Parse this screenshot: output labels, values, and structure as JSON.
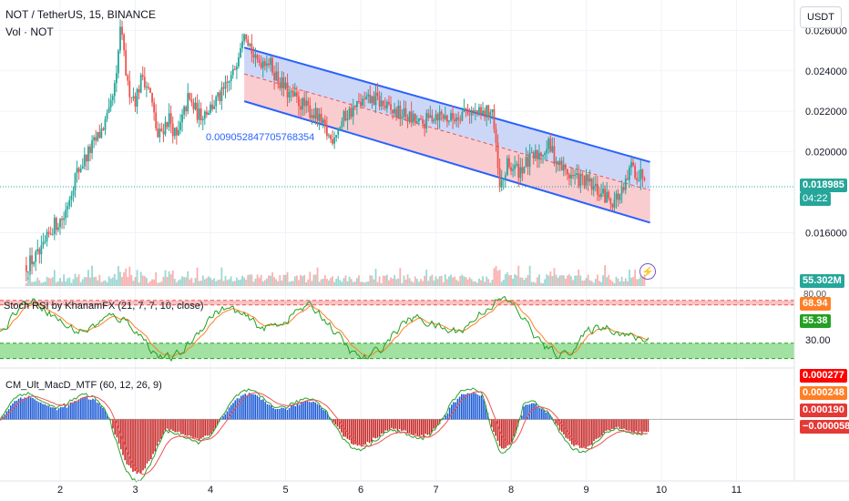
{
  "header": {
    "symbol_line": "NOT / TetherUS, 15, BINANCE",
    "volume_label": "Vol · NOT",
    "currency_button": "USDT"
  },
  "channel_label": "0.009052847705768354",
  "stoch_label": "Stoch RSI by KhanamFX (21, 7, 7, 10, close)",
  "macd_label": "CM_Ult_MacD_MTF (60, 12, 26, 9)",
  "price_badge": {
    "price": "0.018985",
    "countdown": "04:22"
  },
  "volume_badge": "55.302M",
  "stoch_badges": {
    "k": "68.94",
    "d": "55.38",
    "level_80": "80.00",
    "level_30": "30.00"
  },
  "macd_badges": [
    "0.000277",
    "0.000248",
    "0.000190",
    "−0.000058"
  ],
  "colors": {
    "up": "#26a69a",
    "down": "#ef5350",
    "channel_line": "#2962ff",
    "channel_upper_fill": "#c6d3f7",
    "channel_lower_fill": "#f8c6cb",
    "stoch_k": "#22a022",
    "stoch_d": "#ff7f27",
    "macd_up": "#1e5bd6",
    "macd_down": "#c62828"
  },
  "chart_data": {
    "type": "candlestick",
    "x_axis_ticks": [
      "2",
      "3",
      "4",
      "5",
      "6",
      "7",
      "8",
      "9",
      "10",
      "11"
    ],
    "price_axis_ticks": [
      "0.026000",
      "0.024000",
      "0.022000",
      "0.020000",
      "0.016000"
    ],
    "price_range": [
      0.014,
      0.0275
    ],
    "stoch_range": [
      0,
      100
    ],
    "macd_range": [
      -0.0007,
      0.0006
    ],
    "channel": {
      "start_day": 4.45,
      "end_day": 9.85,
      "upper": [
        0.02515,
        0.0195
      ],
      "mid": [
        0.02385,
        0.0181
      ],
      "lower": [
        0.0225,
        0.0165
      ]
    },
    "price_path": [
      [
        1.55,
        0.0144
      ],
      [
        1.75,
        0.015
      ],
      [
        1.9,
        0.0163
      ],
      [
        2.05,
        0.0168
      ],
      [
        2.2,
        0.0188
      ],
      [
        2.35,
        0.0198
      ],
      [
        2.5,
        0.0207
      ],
      [
        2.65,
        0.0218
      ],
      [
        2.75,
        0.0236
      ],
      [
        2.8,
        0.0262
      ],
      [
        2.9,
        0.0232
      ],
      [
        3.0,
        0.0226
      ],
      [
        3.1,
        0.0238
      ],
      [
        3.2,
        0.0228
      ],
      [
        3.3,
        0.0207
      ],
      [
        3.45,
        0.0217
      ],
      [
        3.55,
        0.0206
      ],
      [
        3.7,
        0.0226
      ],
      [
        3.85,
        0.0218
      ],
      [
        4.0,
        0.0222
      ],
      [
        4.15,
        0.0228
      ],
      [
        4.3,
        0.0238
      ],
      [
        4.45,
        0.0262
      ],
      [
        4.6,
        0.0244
      ],
      [
        4.75,
        0.0246
      ],
      [
        4.9,
        0.0236
      ],
      [
        5.05,
        0.0228
      ],
      [
        5.2,
        0.0224
      ],
      [
        5.4,
        0.0218
      ],
      [
        5.6,
        0.0206
      ],
      [
        5.8,
        0.0218
      ],
      [
        6.0,
        0.0224
      ],
      [
        6.2,
        0.0226
      ],
      [
        6.4,
        0.022
      ],
      [
        6.6,
        0.0218
      ],
      [
        6.8,
        0.0213
      ],
      [
        7.0,
        0.0219
      ],
      [
        7.2,
        0.0216
      ],
      [
        7.4,
        0.0221
      ],
      [
        7.6,
        0.0218
      ],
      [
        7.75,
        0.0221
      ],
      [
        7.85,
        0.0181
      ],
      [
        7.95,
        0.0193
      ],
      [
        8.1,
        0.0191
      ],
      [
        8.3,
        0.0197
      ],
      [
        8.5,
        0.0203
      ],
      [
        8.65,
        0.0193
      ],
      [
        8.8,
        0.0188
      ],
      [
        9.0,
        0.0185
      ],
      [
        9.2,
        0.0179
      ],
      [
        9.35,
        0.0176
      ],
      [
        9.5,
        0.018
      ],
      [
        9.6,
        0.0193
      ],
      [
        9.7,
        0.0188
      ],
      [
        9.8,
        0.019
      ]
    ]
  }
}
